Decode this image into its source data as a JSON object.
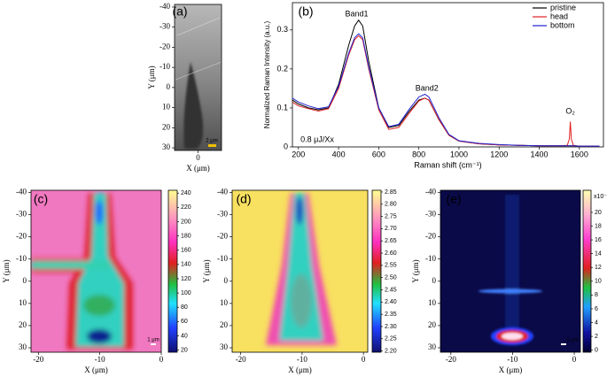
{
  "chart_data": [
    {
      "type": "image",
      "label": "(a)",
      "xlabel": "X (μm)",
      "ylabel": "Y (μm)",
      "xlim": [
        -6,
        6
      ],
      "xticks": [
        0
      ],
      "ylim": [
        -41.3,
        31.3
      ],
      "yticks": [
        -40,
        -30,
        -20,
        -10,
        0,
        10,
        20,
        30
      ],
      "scalebar": "2 μm"
    },
    {
      "type": "line",
      "label": "(b)",
      "xlabel": "Raman shift (cm⁻¹)",
      "ylabel": "Normalized Raman Intensity (a.u.)",
      "xlim": [
        170,
        1720
      ],
      "xticks": [
        200,
        400,
        600,
        800,
        1000,
        1200,
        1400,
        1600
      ],
      "ylim": [
        0,
        0.37
      ],
      "yticks": [
        0,
        0.1,
        0.2,
        0.3
      ],
      "annotations": [
        "Band1",
        "Band2",
        "O₂",
        "0.8 μJ/Xx"
      ],
      "legend": "upper right",
      "x": [
        170,
        200,
        250,
        300,
        350,
        400,
        450,
        480,
        500,
        520,
        550,
        600,
        650,
        700,
        750,
        800,
        830,
        850,
        900,
        950,
        1000,
        1100,
        1200,
        1300,
        1400,
        1500,
        1540,
        1550,
        1555,
        1560,
        1570,
        1600,
        1700
      ],
      "series": [
        {
          "name": "pristine",
          "color": "#000000",
          "values": [
            0.12,
            0.11,
            0.1,
            0.095,
            0.1,
            0.16,
            0.26,
            0.31,
            0.325,
            0.31,
            0.22,
            0.1,
            0.05,
            0.055,
            0.09,
            0.12,
            0.125,
            0.12,
            0.07,
            0.03,
            0.015,
            0.008,
            0.005,
            0.004,
            0.003,
            0.003,
            0.003,
            0.003,
            0.003,
            0.003,
            0.003,
            0.002,
            0.002
          ]
        },
        {
          "name": "head",
          "color": "#e02020",
          "values": [
            0.115,
            0.105,
            0.098,
            0.092,
            0.098,
            0.15,
            0.235,
            0.275,
            0.285,
            0.275,
            0.2,
            0.095,
            0.045,
            0.05,
            0.085,
            0.118,
            0.125,
            0.12,
            0.07,
            0.03,
            0.015,
            0.008,
            0.005,
            0.004,
            0.003,
            0.003,
            0.004,
            0.02,
            0.065,
            0.02,
            0.004,
            0.002,
            0.002
          ]
        },
        {
          "name": "bottom",
          "color": "#2020d0",
          "values": [
            0.125,
            0.115,
            0.105,
            0.098,
            0.103,
            0.155,
            0.24,
            0.28,
            0.29,
            0.28,
            0.205,
            0.1,
            0.052,
            0.058,
            0.095,
            0.128,
            0.135,
            0.128,
            0.075,
            0.032,
            0.016,
            0.009,
            0.006,
            0.004,
            0.003,
            0.003,
            0.003,
            0.003,
            0.003,
            0.003,
            0.003,
            0.002,
            0.002
          ]
        }
      ]
    },
    {
      "type": "heatmap",
      "label": "(c)",
      "xlabel": "X (μm)",
      "ylabel": "Y (μm)",
      "xlim": [
        -21.2,
        0
      ],
      "xticks": [
        -20,
        -10,
        0
      ],
      "ylim": [
        -41,
        32
      ],
      "yticks": [
        -40,
        -30,
        -20,
        -10,
        0,
        10,
        20,
        30
      ],
      "scalebar": "1 μm",
      "clim": [
        17,
        244
      ],
      "cticks": [
        20,
        40,
        60,
        80,
        100,
        120,
        140,
        160,
        180,
        200,
        220,
        240
      ]
    },
    {
      "type": "heatmap",
      "label": "(d)",
      "xlabel": "X (μm)",
      "ylabel": "Y (μm)",
      "xlim": [
        -21.4,
        0.7
      ],
      "xticks": [
        -20,
        -10,
        0
      ],
      "ylim": [
        -41,
        32
      ],
      "yticks": [
        -40,
        -30,
        -20,
        -10,
        0,
        10,
        20,
        30
      ],
      "clim": [
        2.195,
        2.857
      ],
      "cticks": [
        {
          "value": 2.2,
          "label": "2.20"
        },
        2.25,
        {
          "value": 2.3,
          "label": "2.30"
        },
        2.35,
        {
          "value": 2.4,
          "label": "2.40"
        },
        2.45,
        {
          "value": 2.5,
          "label": "2.50"
        },
        2.55,
        {
          "value": 2.6,
          "label": "2.60"
        },
        2.65,
        {
          "value": 2.7,
          "label": "2.70"
        },
        2.75,
        {
          "value": 2.8,
          "label": "2.80"
        },
        2.85
      ]
    },
    {
      "type": "heatmap",
      "label": "(e)",
      "xlabel": "X (μm)",
      "ylabel": "Y (μm)",
      "xlim": [
        -21.7,
        1
      ],
      "xticks": [
        -20,
        -10,
        0
      ],
      "ylim": [
        -41,
        32
      ],
      "yticks": [
        -40,
        -30,
        -20,
        -10,
        0,
        10,
        20,
        30
      ],
      "scalebar": "1 μm",
      "clim": [
        -0.3,
        23.2
      ],
      "cticks": [
        0,
        2,
        4,
        6,
        8,
        10,
        12,
        14,
        16,
        18,
        20
      ],
      "cunit": "x10⁻³"
    }
  ]
}
